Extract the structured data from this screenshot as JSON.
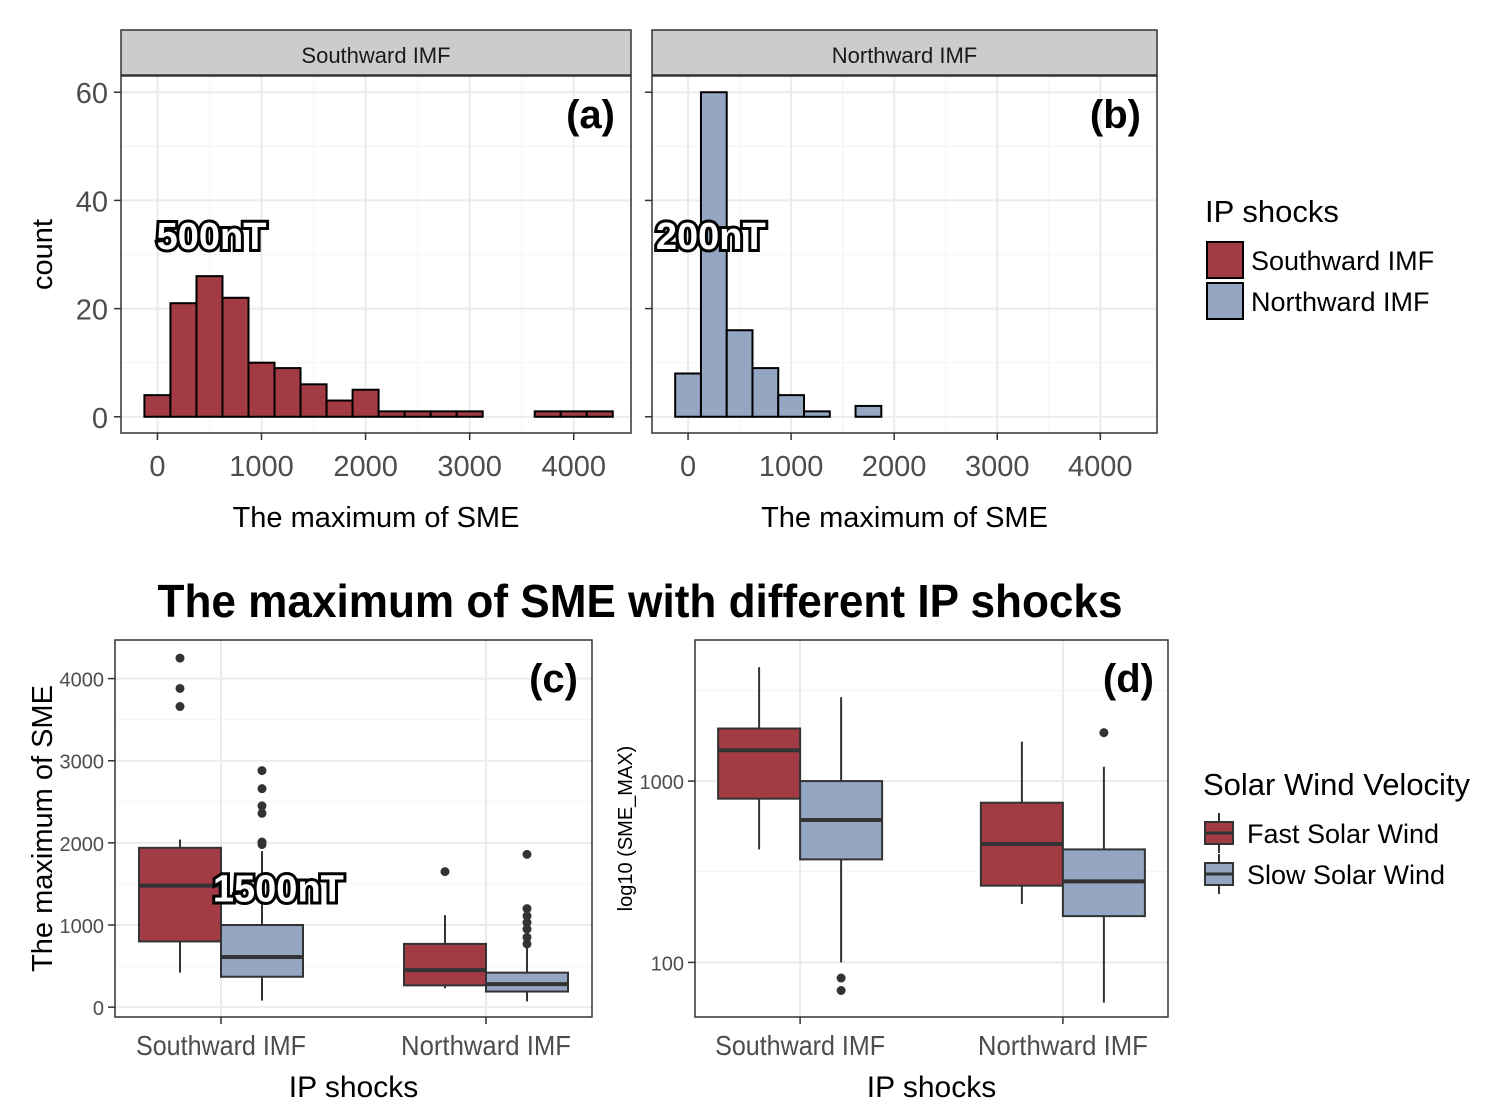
{
  "figure_title": "The maximum of SME with different IP shocks",
  "colors": {
    "southward": "#A23B44",
    "northward": "#94A6C1",
    "fast": "#A23B44",
    "slow": "#94A6C1"
  },
  "chart_data": [
    {
      "id": "a",
      "type": "bar",
      "panel_label": "(a)",
      "strip": "Southward IMF",
      "xlabel": "The maximum of SME",
      "ylabel": "count",
      "xlim": [
        -350,
        4550
      ],
      "ylim": [
        -3,
        63
      ],
      "xticks": [
        0,
        1000,
        2000,
        3000,
        4000
      ],
      "yticks": [
        0,
        20,
        40,
        60
      ],
      "bin_width": 250,
      "bin_starts": [
        -125,
        125,
        375,
        625,
        875,
        1125,
        1375,
        1625,
        1875,
        2125,
        2375,
        2625,
        2875,
        3125,
        3375,
        3625,
        3875,
        4125
      ],
      "values": [
        4,
        21,
        26,
        22,
        10,
        9,
        6,
        3,
        5,
        1,
        1,
        1,
        1,
        0,
        0,
        1,
        1,
        1
      ],
      "series_name": "Southward IMF",
      "annotation": {
        "text": "500nT",
        "x": 520,
        "y": 31
      }
    },
    {
      "id": "b",
      "type": "bar",
      "panel_label": "(b)",
      "strip": "Northward IMF",
      "xlabel": "The maximum of SME",
      "ylabel": "",
      "xlim": [
        -350,
        4550
      ],
      "ylim": [
        -3,
        63
      ],
      "xticks": [
        0,
        1000,
        2000,
        3000,
        4000
      ],
      "yticks": [
        0,
        20,
        40,
        60
      ],
      "bin_width": 250,
      "bin_starts": [
        -125,
        125,
        375,
        625,
        875,
        1125,
        1375,
        1625,
        1875,
        2125,
        2375,
        2625,
        2875,
        3125,
        3375,
        3625,
        3875,
        4125
      ],
      "values": [
        8,
        60,
        16,
        9,
        4,
        1,
        0,
        2,
        0,
        0,
        0,
        0,
        0,
        0,
        0,
        0,
        0,
        0
      ],
      "series_name": "Northward IMF",
      "annotation": {
        "text": "200nT",
        "x": 220,
        "y": 31
      }
    },
    {
      "id": "c",
      "type": "box",
      "panel_label": "(c)",
      "xlabel": "IP shocks",
      "ylabel": "The maximum of SME",
      "categories": [
        "Southward IMF",
        "Northward IMF"
      ],
      "ylim": [
        -120,
        4470
      ],
      "yticks": [
        0,
        1000,
        2000,
        3000,
        4000
      ],
      "series": [
        {
          "name": "Fast Solar Wind",
          "boxes": [
            {
              "min": 420,
              "q1": 800,
              "median": 1480,
              "q3": 1940,
              "max": 2040,
              "outliers": [
                3660,
                3880,
                4250
              ]
            },
            {
              "min": 230,
              "q1": 265,
              "median": 450,
              "q3": 770,
              "max": 1120,
              "outliers": [
                1650
              ]
            }
          ]
        },
        {
          "name": "Slow Solar Wind",
          "boxes": [
            {
              "min": 80,
              "q1": 370,
              "median": 610,
              "q3": 1000,
              "max": 1900,
              "outliers": [
                1980,
                2010,
                2360,
                2450,
                2660,
                2880
              ]
            },
            {
              "min": 70,
              "q1": 190,
              "median": 280,
              "q3": 420,
              "max": 720,
              "outliers": [
                770,
                850,
                950,
                1030,
                1110,
                1200,
                1860
              ]
            }
          ]
        }
      ],
      "annotation": {
        "text": "1500nT",
        "category": 0,
        "y": 1480
      }
    },
    {
      "id": "d",
      "type": "box",
      "panel_label": "(d)",
      "xlabel": "IP shocks",
      "ylabel": "log10 (SME_MAX)",
      "scale": "log10",
      "categories": [
        "Southward IMF",
        "Northward IMF"
      ],
      "ylim": [
        50,
        6000
      ],
      "yticks": [
        100,
        1000
      ],
      "series": [
        {
          "name": "Fast Solar Wind",
          "boxes": [
            {
              "min": 420,
              "q1": 800,
              "median": 1480,
              "q3": 1950,
              "max": 4250,
              "outliers": []
            },
            {
              "min": 210,
              "q1": 265,
              "median": 450,
              "q3": 760,
              "max": 1650,
              "outliers": []
            }
          ]
        },
        {
          "name": "Slow Solar Wind",
          "boxes": [
            {
              "min": 100,
              "q1": 370,
              "median": 610,
              "q3": 1000,
              "max": 2900,
              "outliers": [
                70,
                82
              ]
            },
            {
              "min": 60,
              "q1": 180,
              "median": 280,
              "q3": 420,
              "max": 1200,
              "outliers": [
                1850
              ]
            }
          ]
        }
      ]
    }
  ],
  "legends": [
    {
      "title": "IP shocks",
      "items": [
        {
          "label": "Southward IMF",
          "color": "#A23B44"
        },
        {
          "label": "Northward IMF",
          "color": "#94A6C1"
        }
      ]
    },
    {
      "title": "Solar Wind Velocity",
      "items": [
        {
          "label": "Fast Solar Wind",
          "color": "#A23B44"
        },
        {
          "label": "Slow Solar Wind",
          "color": "#94A6C1"
        }
      ]
    }
  ]
}
